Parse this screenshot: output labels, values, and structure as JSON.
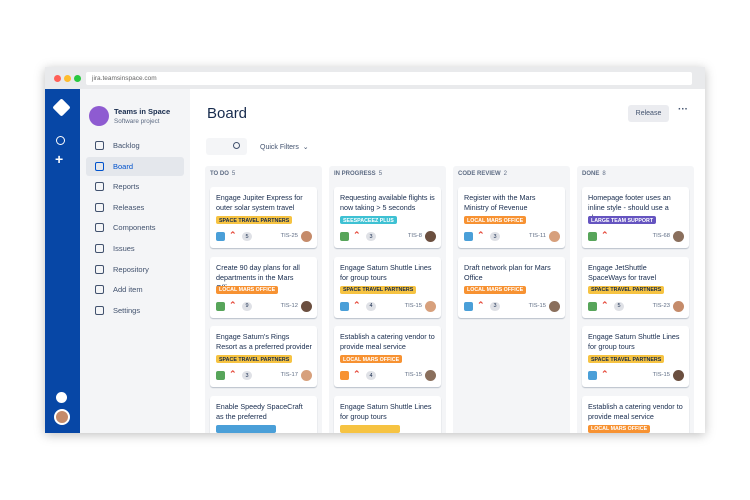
{
  "browser": {
    "url": "jira.teamsinspace.com"
  },
  "project": {
    "name": "Teams in Space",
    "type": "Software project"
  },
  "nav": [
    {
      "label": "Backlog"
    },
    {
      "label": "Board",
      "active": true
    },
    {
      "label": "Reports"
    },
    {
      "label": "Releases"
    },
    {
      "label": "Components"
    },
    {
      "label": "Issues"
    },
    {
      "label": "Repository"
    },
    {
      "label": "Add item"
    },
    {
      "label": "Settings"
    }
  ],
  "header": {
    "title": "Board",
    "button": "Release",
    "filter": "Quick Filters"
  },
  "columns": [
    {
      "name": "TO DO",
      "count": 5,
      "cards": [
        {
          "title": "Engage Jupiter Express for outer solar system travel",
          "label": "SPACE TRAVEL PARTNERS",
          "label_color": "#f6c342",
          "issue_type": "task",
          "points": 5,
          "key": "TIS-25"
        },
        {
          "title": "Create 90 day plans for all departments in the Mars Office",
          "label": "LOCAL MARS OFFICE",
          "label_color": "#f79232",
          "issue_type": "story",
          "points": 9,
          "key": "TIS-12"
        },
        {
          "title": "Engage Saturn's Rings Resort as a preferred provider",
          "label": "SPACE TRAVEL PARTNERS",
          "label_color": "#f6c342",
          "issue_type": "story",
          "points": 3,
          "key": "TIS-17"
        },
        {
          "title": "Enable Speedy SpaceCraft as the preferred",
          "label_color": "#4a9fd8"
        }
      ]
    },
    {
      "name": "IN PROGRESS",
      "count": 5,
      "cards": [
        {
          "title": "Requesting available flights is now taking > 5 seconds",
          "label": "SEESPACEEZ PLUS",
          "label_color": "#3ec1d3",
          "issue_type": "story",
          "points": 3,
          "key": "TIS-8"
        },
        {
          "title": "Engage Saturn Shuttle Lines for group tours",
          "label": "SPACE TRAVEL PARTNERS",
          "label_color": "#f6c342",
          "issue_type": "task",
          "points": 4,
          "key": "TIS-15"
        },
        {
          "title": "Establish a catering vendor to provide meal service",
          "label": "LOCAL MARS OFFICE",
          "label_color": "#f79232",
          "issue_type": "subtask",
          "points": 4,
          "key": "TIS-15"
        },
        {
          "title": "Engage Saturn Shuttle Lines for group tours",
          "label_color": "#f6c342"
        }
      ]
    },
    {
      "name": "CODE REVIEW",
      "count": 2,
      "cards": [
        {
          "title": "Register with the Mars Ministry of Revenue",
          "label": "LOCAL MARS OFFICE",
          "label_color": "#f79232",
          "issue_type": "task",
          "points": 3,
          "key": "TIS-11"
        },
        {
          "title": "Draft network plan for Mars Office",
          "label": "LOCAL MARS OFFICE",
          "label_color": "#f79232",
          "issue_type": "task",
          "points": 3,
          "key": "TIS-15"
        }
      ]
    },
    {
      "name": "DONE",
      "count": 8,
      "cards": [
        {
          "title": "Homepage footer uses an inline style - should use a class",
          "label": "LARGE TEAM SUPPORT",
          "label_color": "#6554c0",
          "issue_type": "story",
          "key": "TIS-68"
        },
        {
          "title": "Engage JetShuttle SpaceWays for travel",
          "label": "SPACE TRAVEL PARTNERS",
          "label_color": "#f6c342",
          "issue_type": "story",
          "points": 5,
          "key": "TIS-23"
        },
        {
          "title": "Engage Saturn Shuttle Lines for group tours",
          "label": "SPACE TRAVEL PARTNERS",
          "label_color": "#f6c342",
          "issue_type": "task",
          "key": "TIS-15"
        },
        {
          "title": "Establish a catering vendor to provide meal service",
          "label": "LOCAL MARS OFFICE",
          "label_color": "#f79232"
        }
      ]
    }
  ]
}
